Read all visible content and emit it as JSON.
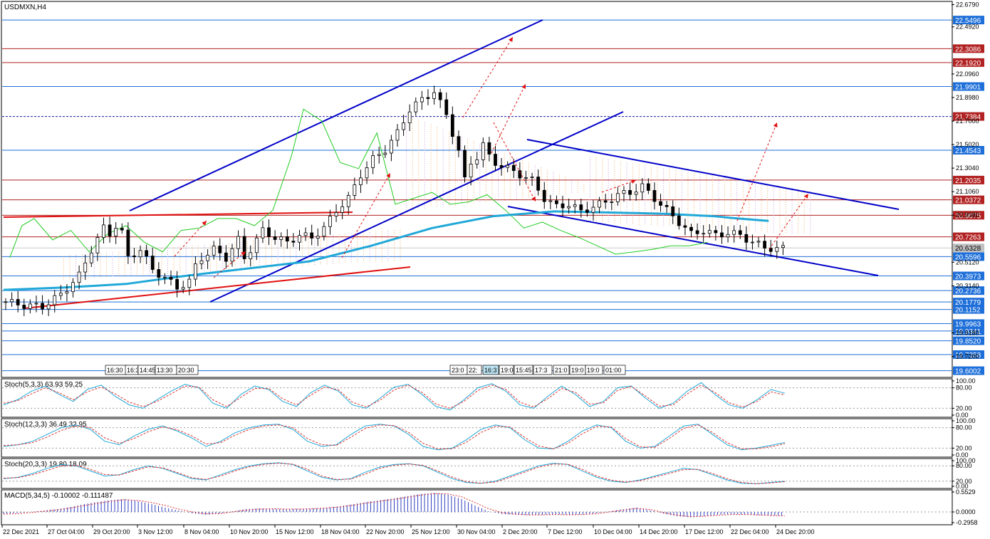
{
  "window": {
    "symbol_title": "USDMXN,H4"
  },
  "colors": {
    "blue_level": "#1e6fd9",
    "red_level": "#b22222",
    "channel": "#0000c8",
    "trend_red": "#e01010",
    "ma_cyan": "#20a8d8",
    "ichimoku_green": "#22cc22",
    "stoch_main": "#20a8d8",
    "stoch_signal": "#e03030",
    "macd_hist": "#3040c0"
  },
  "chart_data": [
    {
      "type": "candlestick",
      "title": "USDMXN,H4",
      "ylim": [
        19.55,
        22.7
      ],
      "y_ticks": [
        "22.6790",
        "22.4920",
        "22.0960",
        "21.8980",
        "21.7000",
        "21.5020",
        "21.3040",
        "21.1060",
        "20.9080",
        "20.5120",
        "20.3140",
        "19.9180",
        "19.7200"
      ],
      "x_ticks": [
        "22 Dec 2021",
        "27 Oct 04:00",
        "29 Oct 20:00",
        "3 Nov 12:00",
        "8 Nov 04:00",
        "10 Nov 20:00",
        "15 Nov 12:00",
        "18 Nov 04:00",
        "22 Nov 20:00",
        "25 Nov 12:00",
        "30 Nov 04:00",
        "2 Dec 20:00",
        "7 Dec 12:00",
        "10 Dec 04:00",
        "14 Dec 20:00",
        "17 Dec 12:00",
        "22 Dec 04:00",
        "24 Dec 20:00"
      ],
      "price_levels": [
        {
          "value": 22.5496,
          "label": "22.5496",
          "kind": "blue"
        },
        {
          "value": 22.3086,
          "label": "22.3086",
          "kind": "red"
        },
        {
          "value": 22.192,
          "label": "22.1920",
          "kind": "red"
        },
        {
          "value": 21.9901,
          "label": "21.9901",
          "kind": "blue"
        },
        {
          "value": 21.7384,
          "label": "21.7384",
          "kind": "dotted"
        },
        {
          "value": 21.4543,
          "label": "21.4543",
          "kind": "blue"
        },
        {
          "value": 21.2035,
          "label": "21.2035",
          "kind": "red"
        },
        {
          "value": 21.0372,
          "label": "21.0372",
          "kind": "red"
        },
        {
          "value": 20.9075,
          "label": "20.9075",
          "kind": "red"
        },
        {
          "value": 20.7263,
          "label": "20.7263",
          "kind": "red"
        },
        {
          "value": 20.6328,
          "label": "20.6328",
          "kind": "current"
        },
        {
          "value": 20.5596,
          "label": "20.5596",
          "kind": "blue"
        },
        {
          "value": 20.3973,
          "label": "20.3973",
          "kind": "blue"
        },
        {
          "value": 20.2736,
          "label": "20.2736",
          "kind": "blue"
        },
        {
          "value": 20.1779,
          "label": "20.1779",
          "kind": "blue"
        },
        {
          "value": 20.1152,
          "label": "20.1152",
          "kind": "blue"
        },
        {
          "value": 19.9963,
          "label": "19.9963",
          "kind": "blue"
        },
        {
          "value": 19.9341,
          "label": "19.9341",
          "kind": "blue"
        },
        {
          "value": 19.852,
          "label": "19.8520",
          "kind": "blue"
        },
        {
          "value": 19.7358,
          "label": "19.7358",
          "kind": "blue"
        },
        {
          "value": 19.6002,
          "label": "19.6002",
          "kind": "blue"
        }
      ],
      "time_markers_left": [
        "16:30",
        "16:3",
        "14:45",
        "13:30",
        "20:30"
      ],
      "time_markers_right": [
        "23:0",
        "22:",
        "16:3",
        "19:0",
        "15:45",
        "17:3",
        "21:0",
        "19:0",
        "19:0",
        "01:00"
      ],
      "price_path": [
        [
          0,
          20.18
        ],
        [
          3,
          20.15
        ],
        [
          6,
          20.14
        ],
        [
          9,
          20.24
        ],
        [
          12,
          20.4
        ],
        [
          14,
          20.62
        ],
        [
          16,
          20.8
        ],
        [
          17,
          20.75
        ],
        [
          18,
          20.82
        ],
        [
          19,
          20.76
        ],
        [
          20,
          20.55
        ],
        [
          22,
          20.62
        ],
        [
          24,
          20.45
        ],
        [
          26,
          20.38
        ],
        [
          28,
          20.3
        ],
        [
          30,
          20.35
        ],
        [
          31,
          20.48
        ],
        [
          32,
          20.55
        ],
        [
          34,
          20.62
        ],
        [
          36,
          20.55
        ],
        [
          38,
          20.7
        ],
        [
          39,
          20.55
        ],
        [
          40,
          20.62
        ],
        [
          42,
          20.78
        ],
        [
          44,
          20.72
        ],
        [
          46,
          20.68
        ],
        [
          48,
          20.74
        ],
        [
          50,
          20.72
        ],
        [
          52,
          20.8
        ],
        [
          54,
          20.95
        ],
        [
          56,
          21.05
        ],
        [
          58,
          21.25
        ],
        [
          60,
          21.38
        ],
        [
          62,
          21.46
        ],
        [
          64,
          21.6
        ],
        [
          66,
          21.8
        ],
        [
          68,
          21.88
        ],
        [
          70,
          21.95
        ],
        [
          71,
          21.85
        ],
        [
          72,
          21.75
        ],
        [
          73,
          21.6
        ],
        [
          74,
          21.45
        ],
        [
          75,
          21.2
        ],
        [
          76,
          21.35
        ],
        [
          77,
          21.4
        ],
        [
          78,
          21.5
        ],
        [
          79,
          21.4
        ],
        [
          80,
          21.35
        ],
        [
          82,
          21.3
        ],
        [
          84,
          21.25
        ],
        [
          86,
          21.2
        ],
        [
          88,
          21.05
        ],
        [
          90,
          20.98
        ],
        [
          92,
          21.0
        ],
        [
          94,
          20.94
        ],
        [
          96,
          20.98
        ],
        [
          98,
          21.02
        ],
        [
          100,
          21.08
        ],
        [
          102,
          21.1
        ],
        [
          104,
          21.15
        ],
        [
          106,
          21.05
        ],
        [
          108,
          20.95
        ],
        [
          110,
          20.85
        ],
        [
          112,
          20.75
        ],
        [
          114,
          20.78
        ],
        [
          116,
          20.74
        ],
        [
          118,
          20.76
        ],
        [
          120,
          20.74
        ],
        [
          122,
          20.68
        ],
        [
          124,
          20.64
        ],
        [
          126,
          20.62
        ],
        [
          127,
          20.63
        ]
      ],
      "series": [
        {
          "name": "Ichimoku Chikou",
          "x": [
            1,
            3,
            5,
            8,
            11,
            14,
            17,
            20,
            23,
            26,
            29,
            32,
            35,
            38,
            41,
            44,
            47,
            49,
            52,
            55,
            58,
            61,
            64,
            67,
            70,
            73,
            76,
            79,
            82,
            85,
            88,
            91,
            94,
            97,
            100,
            103,
            106,
            109,
            112,
            115
          ],
          "values": [
            20.55,
            20.82,
            20.88,
            20.7,
            20.78,
            20.6,
            20.75,
            20.82,
            20.68,
            20.6,
            20.78,
            20.8,
            20.88,
            20.88,
            20.82,
            20.95,
            21.4,
            21.8,
            21.7,
            21.35,
            21.3,
            21.6,
            21.0,
            21.05,
            21.1,
            21.0,
            21.02,
            21.08,
            20.95,
            20.8,
            20.85,
            20.78,
            20.72,
            20.65,
            20.58,
            20.6,
            20.62,
            20.65,
            20.65,
            20.68
          ]
        },
        {
          "name": "EMA",
          "x": [
            0,
            10,
            20,
            30,
            40,
            50,
            60,
            70,
            80,
            90,
            100,
            108,
            116,
            120,
            125
          ],
          "values": [
            20.28,
            20.3,
            20.33,
            20.4,
            20.46,
            20.52,
            20.65,
            20.8,
            20.9,
            20.94,
            20.93,
            20.92,
            20.9,
            20.88,
            20.86
          ]
        }
      ],
      "trend_lines_note": "ascending channel, descending channel, red support/resistance lines, red dashed projection arrows"
    },
    {
      "type": "line",
      "title": "Stoch(5,3,3) 63.93 59.25",
      "ylim": [
        0,
        100
      ],
      "y_ticks": [
        "100.00",
        "80.00",
        "20.00",
        "0.00"
      ],
      "series": [
        {
          "name": "Stoch main",
          "values": [
            30,
            45,
            70,
            85,
            60,
            40,
            75,
            88,
            55,
            30,
            20,
            45,
            70,
            90,
            80,
            35,
            20,
            60,
            85,
            75,
            40,
            25,
            65,
            88,
            70,
            30,
            20,
            50,
            82,
            90,
            60,
            25,
            15,
            45,
            80,
            92,
            70,
            30,
            20,
            55,
            85,
            60,
            25,
            40,
            80,
            85,
            50,
            20,
            35,
            70,
            95,
            60,
            30,
            20,
            45,
            75,
            63.93
          ]
        },
        {
          "name": "Stoch signal",
          "values": [
            35,
            42,
            62,
            80,
            65,
            45,
            68,
            82,
            62,
            38,
            25,
            40,
            62,
            85,
            82,
            45,
            25,
            52,
            78,
            78,
            48,
            30,
            58,
            82,
            74,
            38,
            24,
            44,
            74,
            88,
            66,
            32,
            20,
            40,
            72,
            88,
            75,
            38,
            24,
            48,
            78,
            66,
            32,
            36,
            72,
            84,
            56,
            26,
            30,
            62,
            88,
            66,
            36,
            24,
            40,
            68,
            59.25
          ]
        }
      ]
    },
    {
      "type": "line",
      "title": "Stoch(12,3,3) 36.49 32.95",
      "ylim": [
        0,
        100
      ],
      "y_ticks": [
        "100.00",
        "80.00",
        "20.00",
        "0.00"
      ],
      "series": [
        {
          "name": "Stoch main",
          "values": [
            25,
            30,
            40,
            60,
            80,
            88,
            75,
            40,
            30,
            55,
            75,
            85,
            70,
            50,
            25,
            40,
            65,
            80,
            88,
            90,
            75,
            40,
            25,
            30,
            60,
            85,
            90,
            85,
            60,
            25,
            15,
            20,
            45,
            75,
            88,
            80,
            45,
            20,
            18,
            40,
            70,
            88,
            80,
            40,
            20,
            25,
            55,
            85,
            90,
            60,
            30,
            15,
            20,
            28,
            36.49
          ]
        },
        {
          "name": "Stoch signal",
          "values": [
            28,
            30,
            36,
            52,
            72,
            85,
            80,
            50,
            34,
            48,
            68,
            82,
            74,
            56,
            32,
            36,
            58,
            75,
            85,
            88,
            80,
            48,
            30,
            28,
            52,
            78,
            88,
            86,
            66,
            34,
            18,
            18,
            38,
            66,
            84,
            82,
            52,
            26,
            18,
            34,
            62,
            84,
            82,
            48,
            24,
            22,
            48,
            78,
            88,
            66,
            36,
            18,
            18,
            24,
            32.95
          ]
        }
      ]
    },
    {
      "type": "line",
      "title": "Stoch(20,3,3) 19.80 18.09",
      "ylim": [
        0,
        100
      ],
      "y_ticks": [
        "100.00",
        "80.00",
        "20.00",
        "0.00"
      ],
      "series": [
        {
          "name": "Stoch main",
          "values": [
            30,
            35,
            50,
            70,
            85,
            80,
            60,
            40,
            45,
            65,
            80,
            70,
            50,
            30,
            25,
            45,
            65,
            80,
            88,
            92,
            85,
            60,
            35,
            25,
            30,
            55,
            75,
            85,
            88,
            80,
            55,
            30,
            15,
            12,
            20,
            40,
            60,
            80,
            90,
            85,
            60,
            35,
            20,
            15,
            25,
            40,
            55,
            70,
            65,
            45,
            25,
            12,
            10,
            15,
            19.8
          ]
        },
        {
          "name": "Stoch signal",
          "values": [
            32,
            34,
            45,
            62,
            80,
            82,
            66,
            46,
            44,
            60,
            76,
            72,
            54,
            34,
            27,
            40,
            60,
            76,
            86,
            90,
            86,
            66,
            40,
            27,
            28,
            48,
            70,
            82,
            87,
            82,
            60,
            36,
            18,
            12,
            17,
            35,
            55,
            75,
            87,
            86,
            66,
            40,
            24,
            16,
            22,
            36,
            50,
            65,
            66,
            50,
            30,
            15,
            10,
            13,
            18.09
          ]
        }
      ]
    },
    {
      "type": "bar",
      "title": "MACD(5,34,5) -0.10002 -0.111487",
      "ylim": [
        -0.2958,
        0.5529
      ],
      "y_ticks": [
        "0.5529",
        "0.0000",
        "-0.2958"
      ],
      "series": [
        {
          "name": "MACD",
          "values": [
            -0.05,
            -0.03,
            0.0,
            0.04,
            0.08,
            0.14,
            0.22,
            0.28,
            0.33,
            0.36,
            0.3,
            0.22,
            0.12,
            0.04,
            -0.04,
            -0.08,
            -0.05,
            0.02,
            0.08,
            0.1,
            0.09,
            0.08,
            0.09,
            0.1,
            0.12,
            0.16,
            0.22,
            0.28,
            0.33,
            0.38,
            0.44,
            0.5,
            0.53,
            0.48,
            0.36,
            0.18,
            0.02,
            -0.06,
            -0.08,
            -0.09,
            -0.08,
            -0.07,
            -0.08,
            -0.07,
            -0.04,
            0.02,
            0.08,
            0.12,
            0.05,
            -0.05,
            -0.12,
            -0.15,
            -0.12,
            -0.08,
            -0.06,
            -0.07,
            -0.09,
            -0.1,
            -0.1
          ]
        },
        {
          "name": "Signal",
          "values": [
            -0.06,
            -0.05,
            -0.02,
            0.02,
            0.06,
            0.11,
            0.18,
            0.24,
            0.3,
            0.34,
            0.32,
            0.26,
            0.18,
            0.08,
            0.0,
            -0.05,
            -0.05,
            0.0,
            0.05,
            0.08,
            0.09,
            0.08,
            0.08,
            0.09,
            0.11,
            0.14,
            0.19,
            0.25,
            0.3,
            0.35,
            0.41,
            0.47,
            0.51,
            0.5,
            0.42,
            0.26,
            0.09,
            -0.02,
            -0.06,
            -0.08,
            -0.08,
            -0.07,
            -0.08,
            -0.07,
            -0.05,
            0.0,
            0.05,
            0.1,
            0.07,
            -0.02,
            -0.09,
            -0.13,
            -0.12,
            -0.09,
            -0.07,
            -0.07,
            -0.08,
            -0.1,
            -0.11
          ]
        }
      ]
    }
  ]
}
